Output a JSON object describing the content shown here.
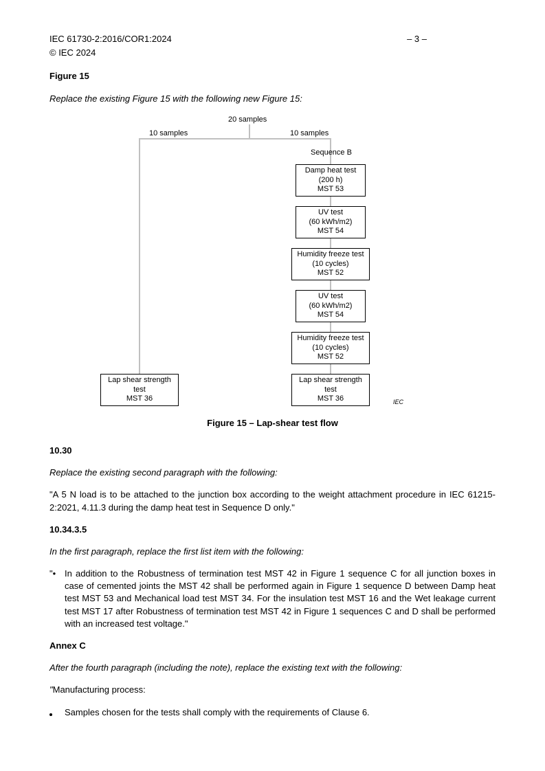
{
  "header": {
    "doc_ref": "IEC 61730-2:2016/COR1:2024",
    "page": "– 3 –",
    "copyright": "© IEC 2024"
  },
  "fig15_title": "Figure 15",
  "fig15_instruction": "Replace the existing Figure 15 with the following new Figure 15:",
  "flowchart": {
    "top_label": "20 samples",
    "left_label": "10 samples",
    "right_label": "10 samples",
    "sequence_label": "Sequence B",
    "boxes": {
      "b1": "Damp heat test\n(200 h)\nMST 53",
      "b2": "UV test\n(60 kWh/m2)\nMST 54",
      "b3": "Humidity freeze test\n(10 cycles)\nMST 52",
      "b4": "UV test\n(60 kWh/m2)\nMST 54",
      "b5": "Humidity freeze test\n(10 cycles)\nMST 52",
      "left_end": "Lap shear strength\ntest\nMST 36",
      "right_end": "Lap shear strength\ntest\nMST 36"
    },
    "iec_mark": "IEC"
  },
  "figure_caption": "Figure 15 – Lap-shear test flow",
  "s1030_title": "10.30",
  "s1030_instruction": "Replace the existing second paragraph with the following:",
  "s1030_text": "\"A 5 N load is to be attached to the junction box according to the weight attachment procedure in IEC 61215-2:2021, 4.11.3 during the damp heat test in Sequence D only.\"",
  "s103435_title": "10.34.3.5",
  "s103435_instruction": "In the first paragraph, replace the first list item with the following:",
  "s103435_bullet_prefix": "\"•",
  "s103435_text": "In addition to the Robustness of termination test MST 42 in Figure 1 sequence C for all junction boxes in case of cemented joints the MST 42 shall be performed again in Figure 1 sequence D between Damp heat test MST 53 and Mechanical load test MST 34. For the insulation test MST 16 and the Wet leakage current test MST 17 after Robustness of termination test MST 42 in Figure 1 sequences C and D shall be performed with an increased test voltage.\"",
  "annexC_title": "Annex C",
  "annexC_instruction": "After the fourth paragraph (including the note), replace the existing text with the following:",
  "annexC_lead_quote": "\"",
  "annexC_lead": "Manufacturing process:",
  "annexC_bullet": "Samples chosen for the tests shall comply with the requirements of Clause 6."
}
